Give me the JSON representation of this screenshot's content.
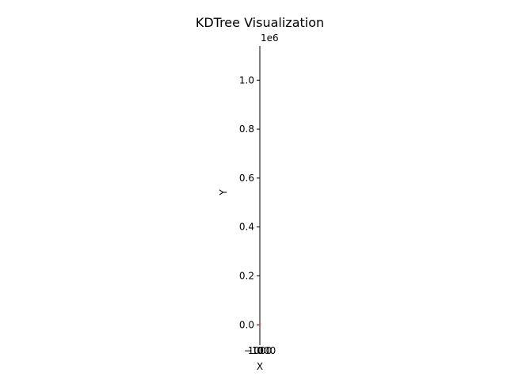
{
  "chart_data": {
    "type": "line",
    "title": "KDTree Visualization",
    "xlabel": "X",
    "ylabel": "Y",
    "y_offset_label": "1e6",
    "y_ticks": [
      0.0,
      0.2,
      0.4,
      0.6,
      0.8,
      1.0
    ],
    "y_tick_labels": [
      "0.0",
      "0.2",
      "0.4",
      "0.6",
      "0.8",
      "1.0"
    ],
    "x_tick_labels": [
      "−1000",
      "0",
      "1000"
    ],
    "ylim": [
      -0.07,
      1.14
    ],
    "grid": false,
    "legend": "none",
    "series": [
      {
        "color": "#d62728",
        "x": [
          0,
          0
        ],
        "y": [
          0.0,
          3e-05
        ]
      }
    ]
  }
}
